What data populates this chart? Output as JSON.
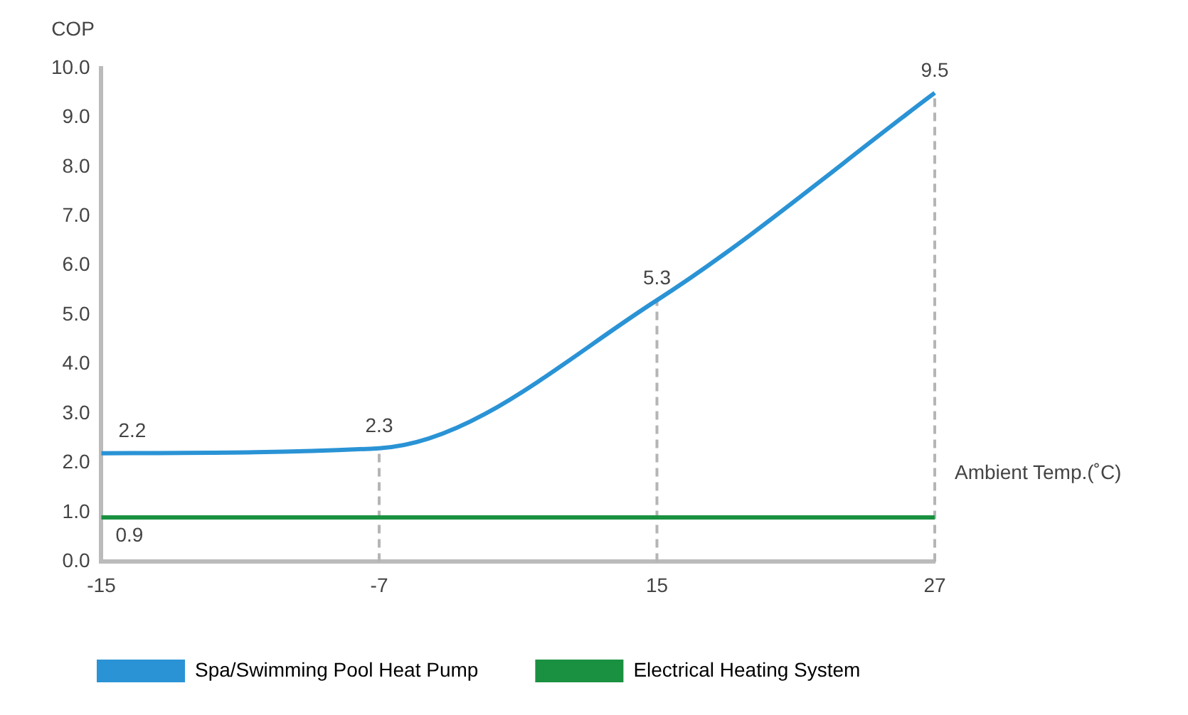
{
  "chart_data": {
    "type": "line",
    "ylabel": "COP",
    "xlabel": "Ambient Temp.(˚C)",
    "categories": [
      "-15",
      "-7",
      "15",
      "27"
    ],
    "series": [
      {
        "name": "Spa/Swimming Pool Heat Pump",
        "color": "#2a93d5",
        "values": [
          2.2,
          2.3,
          5.3,
          9.5
        ],
        "value_labels": [
          "2.2",
          "2.3",
          "5.3",
          "9.5"
        ]
      },
      {
        "name": "Electrical Heating System",
        "color": "#1a9140",
        "values": [
          0.9,
          0.9,
          0.9,
          0.9
        ],
        "value_labels": [
          "0.9",
          null,
          null,
          null
        ]
      }
    ],
    "ylim": [
      0,
      10
    ],
    "yticks": [
      {
        "value": 0,
        "label": "0.0"
      },
      {
        "value": 1,
        "label": "1.0"
      },
      {
        "value": 2,
        "label": "2.0"
      },
      {
        "value": 3,
        "label": "3.0"
      },
      {
        "value": 4,
        "label": "4.0"
      },
      {
        "value": 5,
        "label": "5.0"
      },
      {
        "value": 6,
        "label": "6.0"
      },
      {
        "value": 7,
        "label": "7.0"
      },
      {
        "value": 8,
        "label": "8.0"
      },
      {
        "value": 9,
        "label": "9.0"
      },
      {
        "value": 10,
        "label": "10.0"
      }
    ],
    "ref_lines": [
      {
        "axis": "x",
        "value": "-7",
        "color": "#b5b5b5",
        "line_style": "dashed"
      },
      {
        "axis": "x",
        "value": "15",
        "color": "#b5b5b5",
        "line_style": "dashed"
      },
      {
        "axis": "x",
        "value": "27",
        "color": "#b5b5b5",
        "line_style": "dashed"
      }
    ],
    "grid": false,
    "legend": "bottom",
    "marker": "none",
    "line_style": "solid"
  }
}
